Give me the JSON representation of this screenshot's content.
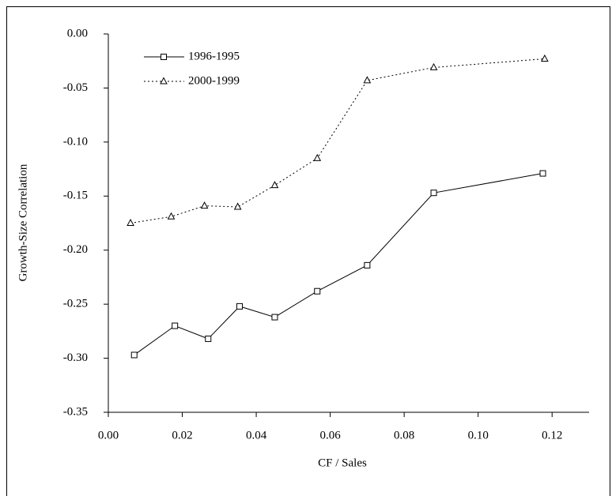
{
  "chart_data": {
    "type": "line",
    "x_label": "CF / Sales",
    "y_label": "Growth-Size Correlation",
    "xlim": [
      0,
      0.13
    ],
    "ylim": [
      -0.35,
      0
    ],
    "xticks": [
      {
        "value": 0,
        "label": "0.00"
      },
      0.02,
      0.04,
      0.06,
      0.08,
      {
        "value": 0.1,
        "label": "0.10"
      },
      0.12
    ],
    "yticks": [
      {
        "value": 0,
        "label": "0.00"
      },
      -0.05,
      {
        "value": -0.1,
        "label": "-0.10"
      },
      -0.15,
      {
        "value": -0.2,
        "label": "-0.20"
      },
      -0.25,
      {
        "value": -0.3,
        "label": "-0.30"
      },
      -0.35
    ],
    "legend": "upper left",
    "series": [
      {
        "name": "1996-1995",
        "color": "#000000",
        "style": "solid",
        "marker": "square",
        "x": [
          0.007,
          0.018,
          0.027,
          0.0355,
          0.045,
          0.0565,
          0.07,
          0.088,
          0.1175
        ],
        "values": [
          -0.297,
          -0.27,
          -0.282,
          -0.252,
          -0.262,
          -0.238,
          -0.214,
          -0.147,
          -0.129
        ]
      },
      {
        "name": "2000-1999",
        "color": "#000000",
        "style": "dotted",
        "marker": "triangle",
        "x": [
          0.006,
          0.017,
          0.026,
          0.035,
          0.045,
          0.0565,
          0.07,
          0.088,
          0.118
        ],
        "values": [
          -0.175,
          -0.169,
          -0.159,
          -0.16,
          -0.14,
          -0.115,
          -0.043,
          -0.031,
          -0.023
        ]
      }
    ]
  }
}
